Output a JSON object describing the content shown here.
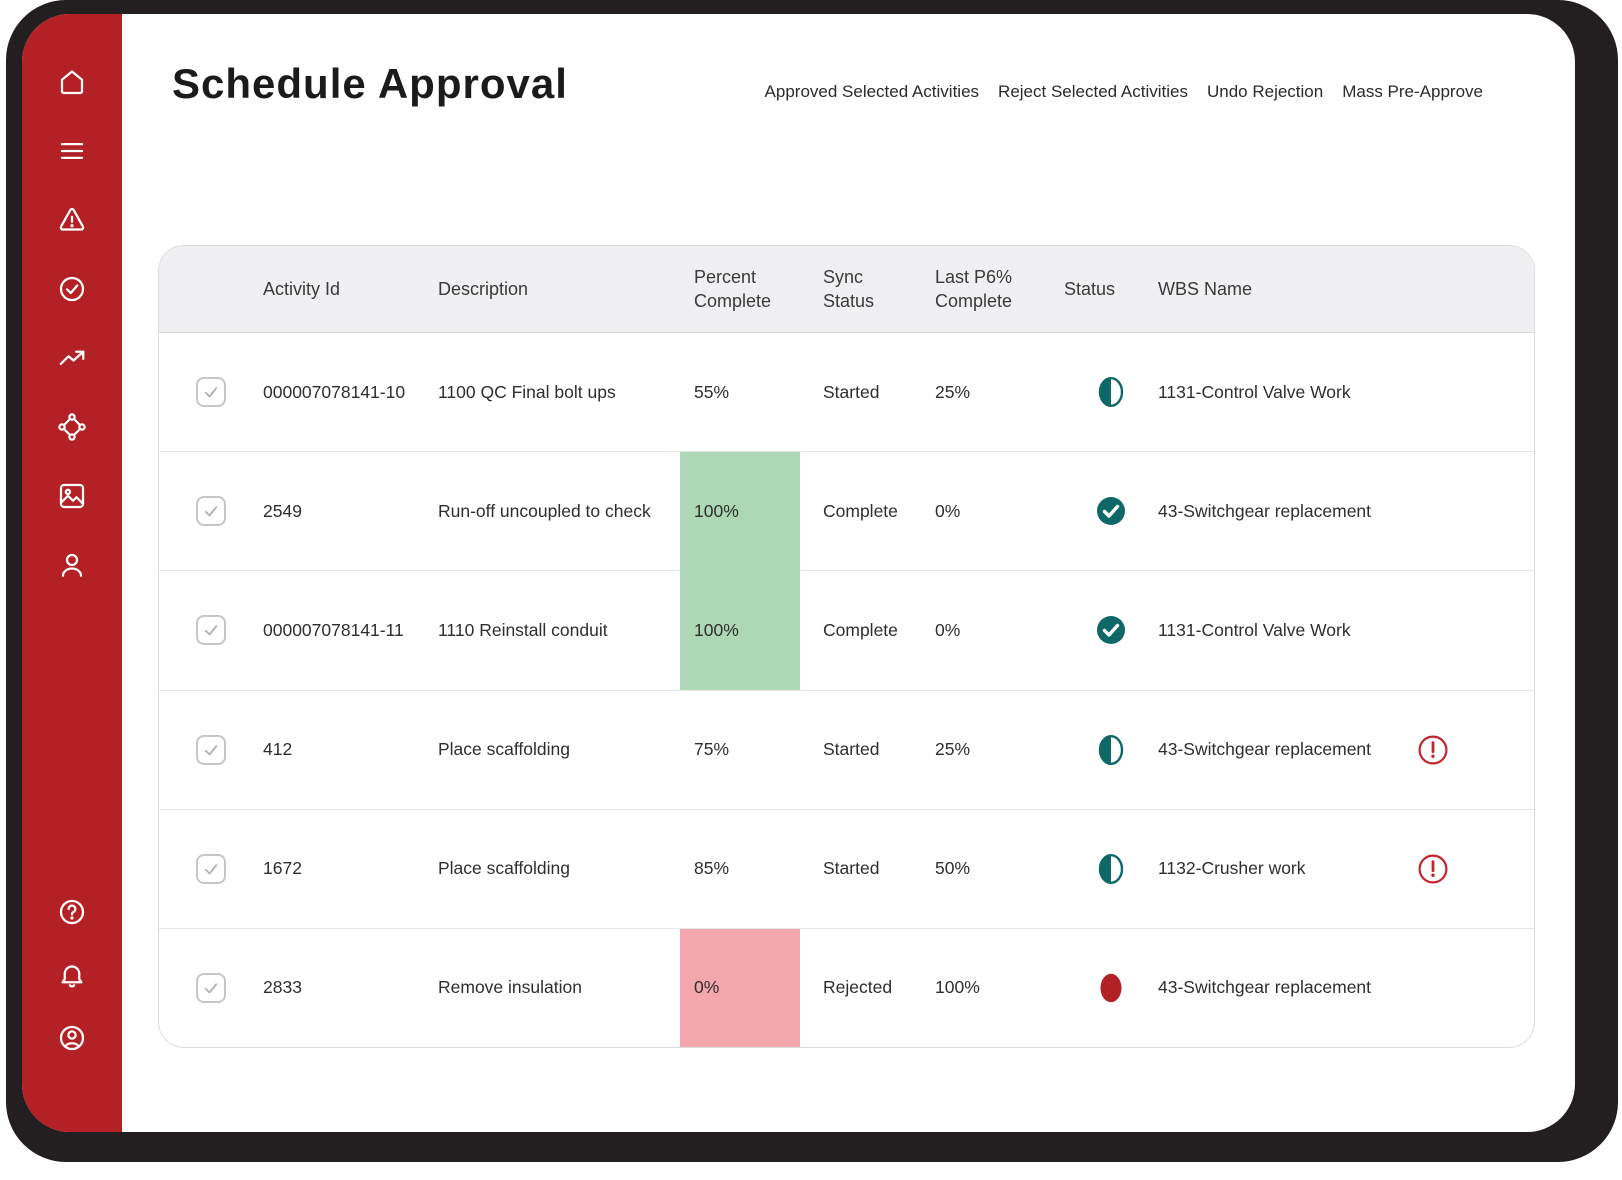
{
  "colors": {
    "sidebar-red": "#b32025",
    "frame-dark": "#231f20",
    "teal": "#0e6868",
    "status-red": "#b22126",
    "warning-red": "#c5232b",
    "green-bg": "#acd8b5",
    "pink-bg": "#f4a7ac",
    "header-bg": "#f0eff1",
    "border": "#dcdcdc",
    "divider": "#e6e6e6",
    "text": "#2e2e2e",
    "checkbox-border": "#c6c6c6",
    "checkbox-check": "#b0b0b0"
  },
  "header": {
    "title": "Schedule Approval",
    "actions": [
      {
        "label": "Approved Selected Activities"
      },
      {
        "label": "Reject Selected Activities"
      },
      {
        "label": "Undo Rejection"
      },
      {
        "label": "Mass Pre-Approve"
      }
    ]
  },
  "sidebar": {
    "top_icons": [
      "home",
      "menu",
      "alert-triangle",
      "check-circle",
      "trending-up",
      "network",
      "image",
      "user"
    ],
    "bottom_icons": [
      "help",
      "bell",
      "account"
    ]
  },
  "table": {
    "columns": [
      "",
      "Activity Id",
      "Description",
      "Percent\nComplete",
      "Sync\nStatus",
      "Last P6%\nComplete",
      "Status",
      "WBS Name",
      ""
    ],
    "rows": [
      {
        "checked": true,
        "activity_id": "000007078141-10",
        "description": "1100 QC Final bolt ups",
        "percent_complete": "55%",
        "percent_highlight": "none",
        "sync_status": "Started",
        "last_p6_complete": "25%",
        "status": "in-progress",
        "wbs_name": "1131-Control Valve Work",
        "warning": false
      },
      {
        "checked": true,
        "activity_id": "2549",
        "description": "Run-off uncoupled to check",
        "percent_complete": "100%",
        "percent_highlight": "green",
        "sync_status": "Complete",
        "last_p6_complete": "0%",
        "status": "complete",
        "wbs_name": "43-Switchgear replacement",
        "warning": false
      },
      {
        "checked": true,
        "activity_id": "000007078141-11",
        "description": "1110 Reinstall conduit",
        "percent_complete": "100%",
        "percent_highlight": "green",
        "sync_status": "Complete",
        "last_p6_complete": "0%",
        "status": "complete",
        "wbs_name": "1131-Control Valve Work",
        "warning": false
      },
      {
        "checked": true,
        "activity_id": "412",
        "description": "Place scaffolding",
        "percent_complete": "75%",
        "percent_highlight": "none",
        "sync_status": "Started",
        "last_p6_complete": "25%",
        "status": "in-progress",
        "wbs_name": "43-Switchgear replacement",
        "warning": true
      },
      {
        "checked": true,
        "activity_id": "1672",
        "description": "Place scaffolding",
        "percent_complete": "85%",
        "percent_highlight": "none",
        "sync_status": "Started",
        "last_p6_complete": "50%",
        "status": "in-progress",
        "wbs_name": "1132-Crusher work",
        "warning": true
      },
      {
        "checked": true,
        "activity_id": "2833",
        "description": "Remove insulation",
        "percent_complete": "0%",
        "percent_highlight": "red",
        "sync_status": "Rejected",
        "last_p6_complete": "100%",
        "status": "rejected",
        "wbs_name": "43-Switchgear replacement",
        "warning": false
      }
    ]
  }
}
